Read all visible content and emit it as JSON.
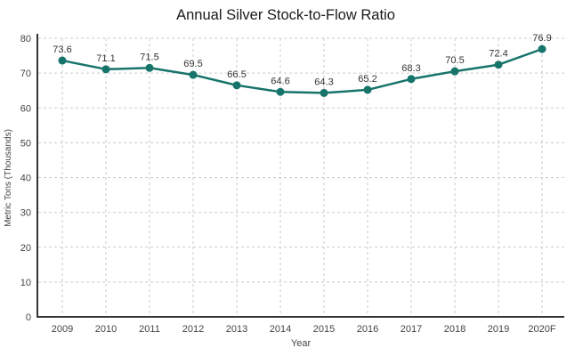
{
  "chart_data": {
    "type": "line",
    "title": "Annual Silver Stock-to-Flow Ratio",
    "xlabel": "Year",
    "ylabel": "Metric Tons (Thousands)",
    "categories": [
      "2009",
      "2010",
      "2011",
      "2012",
      "2013",
      "2014",
      "2015",
      "2016",
      "2017",
      "2018",
      "2019",
      "2020F"
    ],
    "values": [
      73.6,
      71.1,
      71.5,
      69.5,
      66.5,
      64.6,
      64.3,
      65.2,
      68.3,
      70.5,
      72.4,
      76.9
    ],
    "ylim": [
      0,
      80
    ],
    "ytick_step": 10,
    "grid": true,
    "legend": "none",
    "colors": {
      "line": "#17746b",
      "marker": "#17746b",
      "title_text": "#1a1a1a",
      "data_label": "#333333",
      "tick_label": "#444444",
      "axis_line": "#333333",
      "gridline": "#cbcbcb",
      "background": "#ffffff"
    }
  }
}
